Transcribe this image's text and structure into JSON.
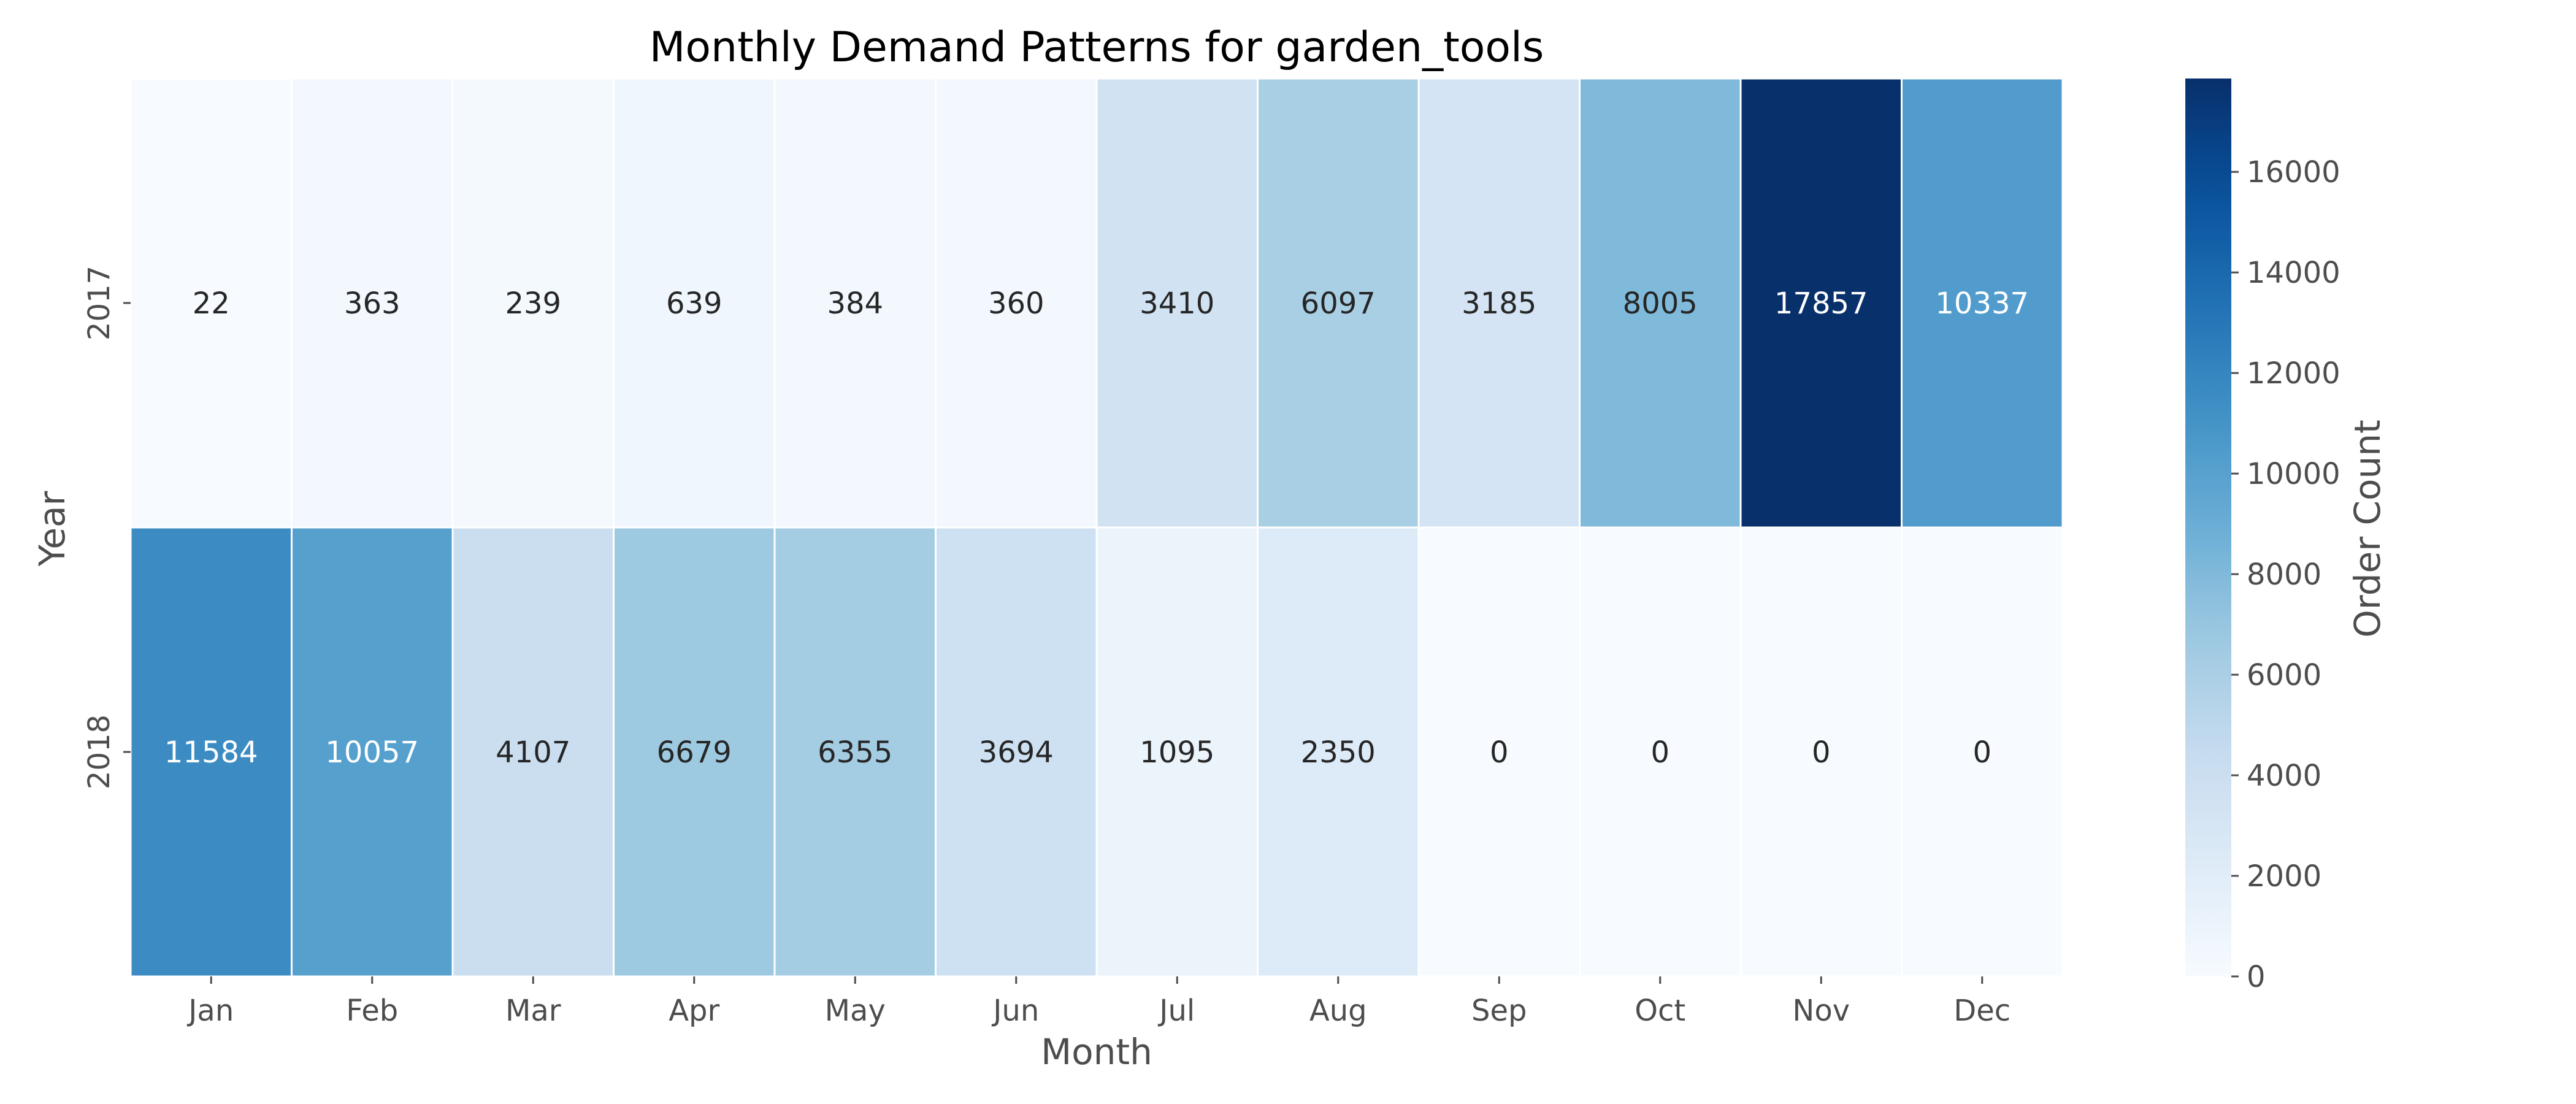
{
  "chart_data": {
    "type": "heatmap",
    "title": "Monthly Demand Patterns for garden_tools",
    "xlabel": "Month",
    "ylabel": "Year",
    "x": [
      "Jan",
      "Feb",
      "Mar",
      "Apr",
      "May",
      "Jun",
      "Jul",
      "Aug",
      "Sep",
      "Oct",
      "Nov",
      "Dec"
    ],
    "y": [
      "2017",
      "2018"
    ],
    "values": [
      [
        22,
        363,
        239,
        639,
        384,
        360,
        3410,
        6097,
        3185,
        8005,
        17857,
        10337
      ],
      [
        11584,
        10057,
        4107,
        6679,
        6355,
        3694,
        1095,
        2350,
        0,
        0,
        0,
        0
      ]
    ],
    "colormap": "Blues",
    "colorbar": {
      "label": "Order Count",
      "range": [
        0,
        17857
      ],
      "ticks": [
        0,
        2000,
        4000,
        6000,
        8000,
        10000,
        12000,
        14000,
        16000
      ]
    },
    "annotated": true,
    "grid": false
  }
}
